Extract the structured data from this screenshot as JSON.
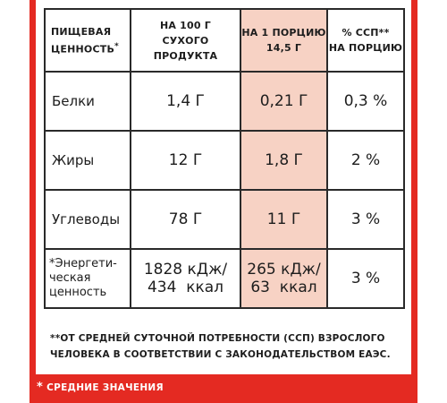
{
  "header": {
    "col1_line1": "ПИЩЕВАЯ",
    "col1_line2": "ЦЕННОСТЬ",
    "col1_mark": "*",
    "col2_line1": "НА 100 Г",
    "col2_line2": "СУХОГО ПРОДУКТА",
    "col3_line1": "НА 1 ПОРЦИЮ",
    "col3_line2": "14,5 Г",
    "col4_line1": "% ССП**",
    "col4_line2": "НА ПОРЦИЮ"
  },
  "rows": [
    {
      "name": "Белки",
      "per100": "1,4 Г",
      "perPortion": "0,21 Г",
      "pct": "0,3 %"
    },
    {
      "name": "Жиры",
      "per100": "12 Г",
      "perPortion": "1,8 Г",
      "pct": "2 %"
    },
    {
      "name": "Углеводы",
      "per100": "78 Г",
      "perPortion": "11 Г",
      "pct": "3 %"
    }
  ],
  "energy": {
    "name_line1": "*Энергети-",
    "name_line2": "ческая",
    "name_line3": "ценность",
    "per100_line1": "1828 кДж/",
    "per100_line2": "434  ккал",
    "perPortion_line1": "265 кДж/",
    "perPortion_line2": "63  ккал",
    "pct": "3 %"
  },
  "footnote_line1": "**ОТ СРЕДНЕЙ СУТОЧНОЙ ПОТРЕБНОСТИ (ССП) ВЗРОСЛОГО",
  "footnote_line2": "ЧЕЛОВЕКА В СООТВЕТСТВИИ С ЗАКОНОДАТЕЛЬСТВОМ ЕАЭС.",
  "average_mark": "*",
  "average_note": "СРЕДНИЕ ЗНАЧЕНИЯ",
  "colors": {
    "panel": "#e42a22",
    "highlight": "#f7d2c4"
  }
}
